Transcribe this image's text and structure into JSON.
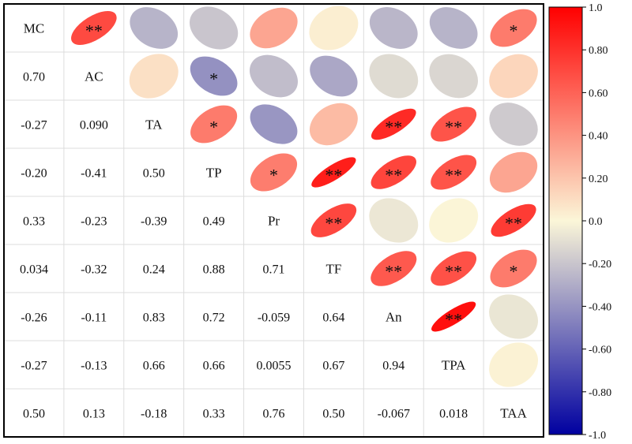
{
  "chart_data": {
    "type": "heatmap",
    "variables": [
      "MC",
      "AC",
      "TA",
      "TP",
      "Pr",
      "TF",
      "An",
      "TPA",
      "TAA"
    ],
    "lower_triangle_labels": [
      [],
      [
        "0.70"
      ],
      [
        "-0.27",
        "0.090"
      ],
      [
        "-0.20",
        "-0.41",
        "0.50"
      ],
      [
        "0.33",
        "-0.23",
        "-0.39",
        "0.49"
      ],
      [
        "0.034",
        "-0.32",
        "0.24",
        "0.88",
        "0.71"
      ],
      [
        "-0.26",
        "-0.11",
        "0.83",
        "0.72",
        "-0.059",
        "0.64"
      ],
      [
        "-0.27",
        "-0.13",
        "0.66",
        "0.66",
        "0.0055",
        "0.67",
        "0.94"
      ],
      [
        "0.50",
        "0.13",
        "-0.18",
        "0.33",
        "0.76",
        "0.50",
        "-0.067",
        "0.018"
      ]
    ],
    "correlation_matrix": [
      [
        1,
        0.7,
        -0.27,
        -0.2,
        0.33,
        0.034,
        -0.26,
        -0.27,
        0.5
      ],
      [
        0.7,
        1,
        0.09,
        -0.41,
        -0.23,
        -0.32,
        -0.11,
        -0.13,
        0.13
      ],
      [
        -0.27,
        0.09,
        1,
        0.5,
        -0.39,
        0.24,
        0.83,
        0.66,
        -0.18
      ],
      [
        -0.2,
        -0.41,
        0.5,
        1,
        0.49,
        0.88,
        0.72,
        0.66,
        0.33
      ],
      [
        0.33,
        -0.23,
        -0.39,
        0.49,
        1,
        0.71,
        -0.059,
        0.0055,
        0.76
      ],
      [
        0.034,
        -0.32,
        0.24,
        0.88,
        0.71,
        1,
        0.64,
        0.67,
        0.5
      ],
      [
        -0.26,
        -0.11,
        0.83,
        0.72,
        -0.059,
        0.64,
        1,
        0.94,
        -0.067
      ],
      [
        -0.27,
        -0.13,
        0.66,
        0.66,
        0.0055,
        0.67,
        0.94,
        1,
        0.018
      ],
      [
        0.5,
        0.13,
        -0.18,
        0.33,
        0.76,
        0.5,
        -0.067,
        0.018,
        1
      ]
    ],
    "significance": [
      [
        "",
        "**",
        "",
        "",
        "",
        "",
        "",
        "",
        "*"
      ],
      [
        "**",
        "",
        "",
        "*",
        "",
        "",
        "",
        "",
        ""
      ],
      [
        "",
        "",
        "",
        "*",
        "",
        "",
        "**",
        "**",
        ""
      ],
      [
        "",
        "*",
        "*",
        "",
        "*",
        "**",
        "**",
        "**",
        ""
      ],
      [
        "",
        "",
        "",
        "*",
        "",
        "**",
        "",
        "",
        "**"
      ],
      [
        "",
        "",
        "",
        "**",
        "**",
        "",
        "**",
        "**",
        "*"
      ],
      [
        "",
        "",
        "**",
        "**",
        "",
        "**",
        "",
        "**",
        ""
      ],
      [
        "",
        "",
        "**",
        "**",
        "",
        "**",
        "**",
        "",
        ""
      ],
      [
        "*",
        "",
        "",
        "",
        "**",
        "*",
        "",
        "",
        ""
      ]
    ],
    "color_scale": {
      "range": [
        -1.0,
        1.0
      ],
      "ticks": [
        "1.0",
        "0.80",
        "0.60",
        "0.40",
        "0.20",
        "0.0",
        "-0.20",
        "-0.40",
        "-0.60",
        "-0.80",
        "-1.0"
      ],
      "color_negative": "#0000a0",
      "color_zero": "#fbf6d8",
      "color_positive": "#ff0000",
      "legend_position": "right"
    },
    "grid": true
  }
}
